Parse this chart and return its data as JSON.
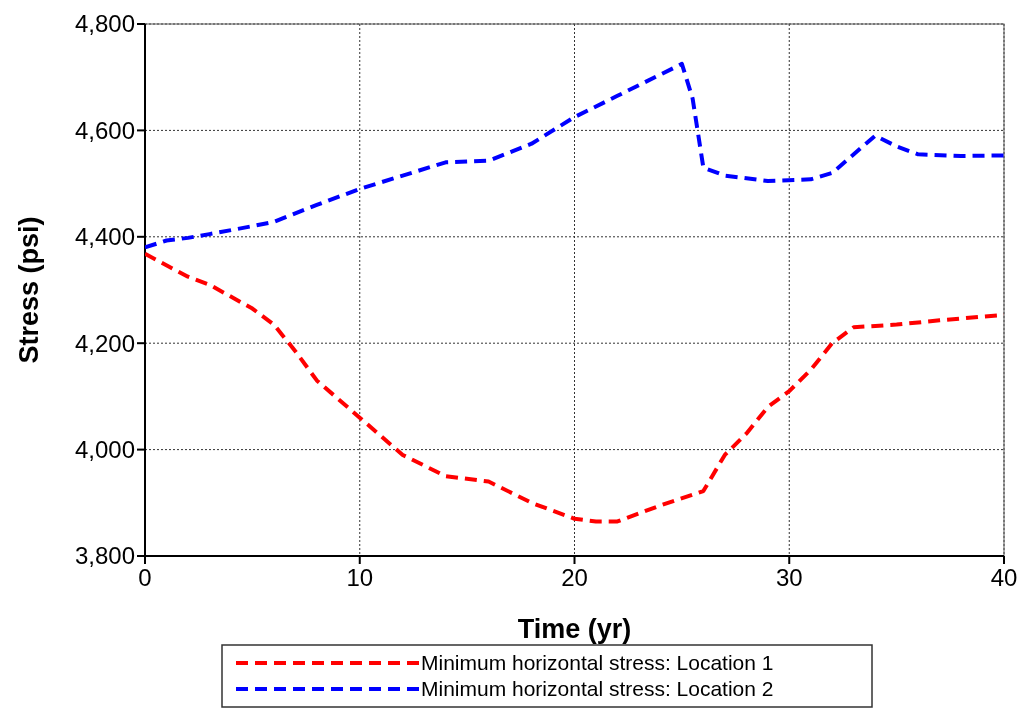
{
  "chart_data": {
    "type": "line",
    "xlabel": "Time (yr)",
    "ylabel": "Stress (psi)",
    "xlim": [
      0,
      40
    ],
    "xticks": [
      0,
      10,
      20,
      30,
      40
    ],
    "ylim": [
      3800,
      4800
    ],
    "yticks": [
      {
        "value": 3800,
        "label": "3,800"
      },
      {
        "value": 4000,
        "label": "4,000"
      },
      {
        "value": 4200,
        "label": "4,200"
      },
      {
        "value": 4400,
        "label": "4,400"
      },
      {
        "value": 4600,
        "label": "4,600"
      },
      {
        "value": 4800,
        "label": "4,800"
      }
    ],
    "grid": true,
    "legend": "bottom",
    "line_style": "dashed",
    "series": [
      {
        "name": "Minimum horizontal stress: Location 1",
        "color": "#ff0000",
        "x": [
          0,
          2,
          3,
          5,
          6,
          7,
          8,
          10,
          12,
          14,
          16,
          18,
          20,
          21,
          22,
          24,
          26,
          27,
          28,
          29,
          30,
          31,
          32,
          33,
          35,
          37,
          39,
          40
        ],
        "values": [
          4368,
          4325,
          4310,
          4265,
          4235,
          4185,
          4130,
          4060,
          3990,
          3950,
          3940,
          3900,
          3870,
          3865,
          3865,
          3895,
          3922,
          3990,
          4030,
          4080,
          4110,
          4150,
          4200,
          4230,
          4235,
          4243,
          4250,
          4253
        ]
      },
      {
        "name": "Minimum horizontal stress: Location 2",
        "color": "#0000ff",
        "x": [
          0,
          1,
          2,
          3,
          5,
          6,
          8,
          10,
          12,
          14,
          16,
          18,
          20,
          22,
          24,
          25,
          25.5,
          26,
          27,
          29,
          31,
          32,
          34,
          35,
          36,
          38,
          40
        ],
        "values": [
          4380,
          4393,
          4398,
          4405,
          4420,
          4428,
          4460,
          4490,
          4515,
          4540,
          4543,
          4575,
          4625,
          4665,
          4705,
          4725,
          4660,
          4530,
          4515,
          4505,
          4508,
          4520,
          4590,
          4570,
          4555,
          4552,
          4553
        ]
      }
    ]
  }
}
